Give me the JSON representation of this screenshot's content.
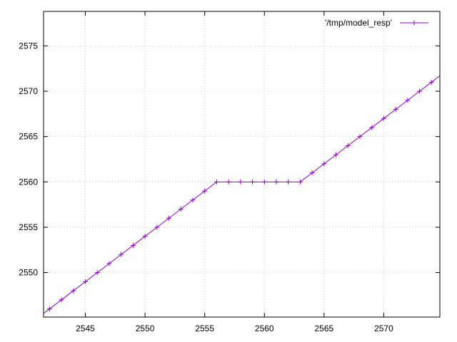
{
  "chart_data": {
    "type": "line",
    "title": "",
    "xlabel": "",
    "ylabel": "",
    "xlim": [
      2541.5,
      2574.7
    ],
    "ylim": [
      2545.1,
      2578.8
    ],
    "xticks": [
      2545,
      2550,
      2555,
      2560,
      2565,
      2570
    ],
    "yticks": [
      2550,
      2555,
      2560,
      2565,
      2570,
      2575
    ],
    "grid": true,
    "legend_position": "top-right",
    "series": [
      {
        "name": "'/tmp/model_resp'",
        "color": "#9400d3",
        "marker": "plus",
        "x": [
          2542,
          2543,
          2544,
          2545,
          2546,
          2547,
          2548,
          2549,
          2550,
          2551,
          2552,
          2553,
          2554,
          2555,
          2556,
          2557,
          2558,
          2559,
          2560,
          2561,
          2562,
          2563,
          2564,
          2565,
          2566,
          2567,
          2568,
          2569,
          2570,
          2571,
          2572,
          2573,
          2574
        ],
        "y": [
          2546,
          2547,
          2548,
          2549,
          2550,
          2551,
          2552,
          2553,
          2554,
          2555,
          2556,
          2557,
          2558,
          2559,
          2560,
          2560,
          2560,
          2560,
          2560,
          2560,
          2560,
          2560,
          2561,
          2562,
          2563,
          2564,
          2565,
          2566,
          2567,
          2568,
          2569,
          2570,
          2571
        ]
      }
    ]
  }
}
